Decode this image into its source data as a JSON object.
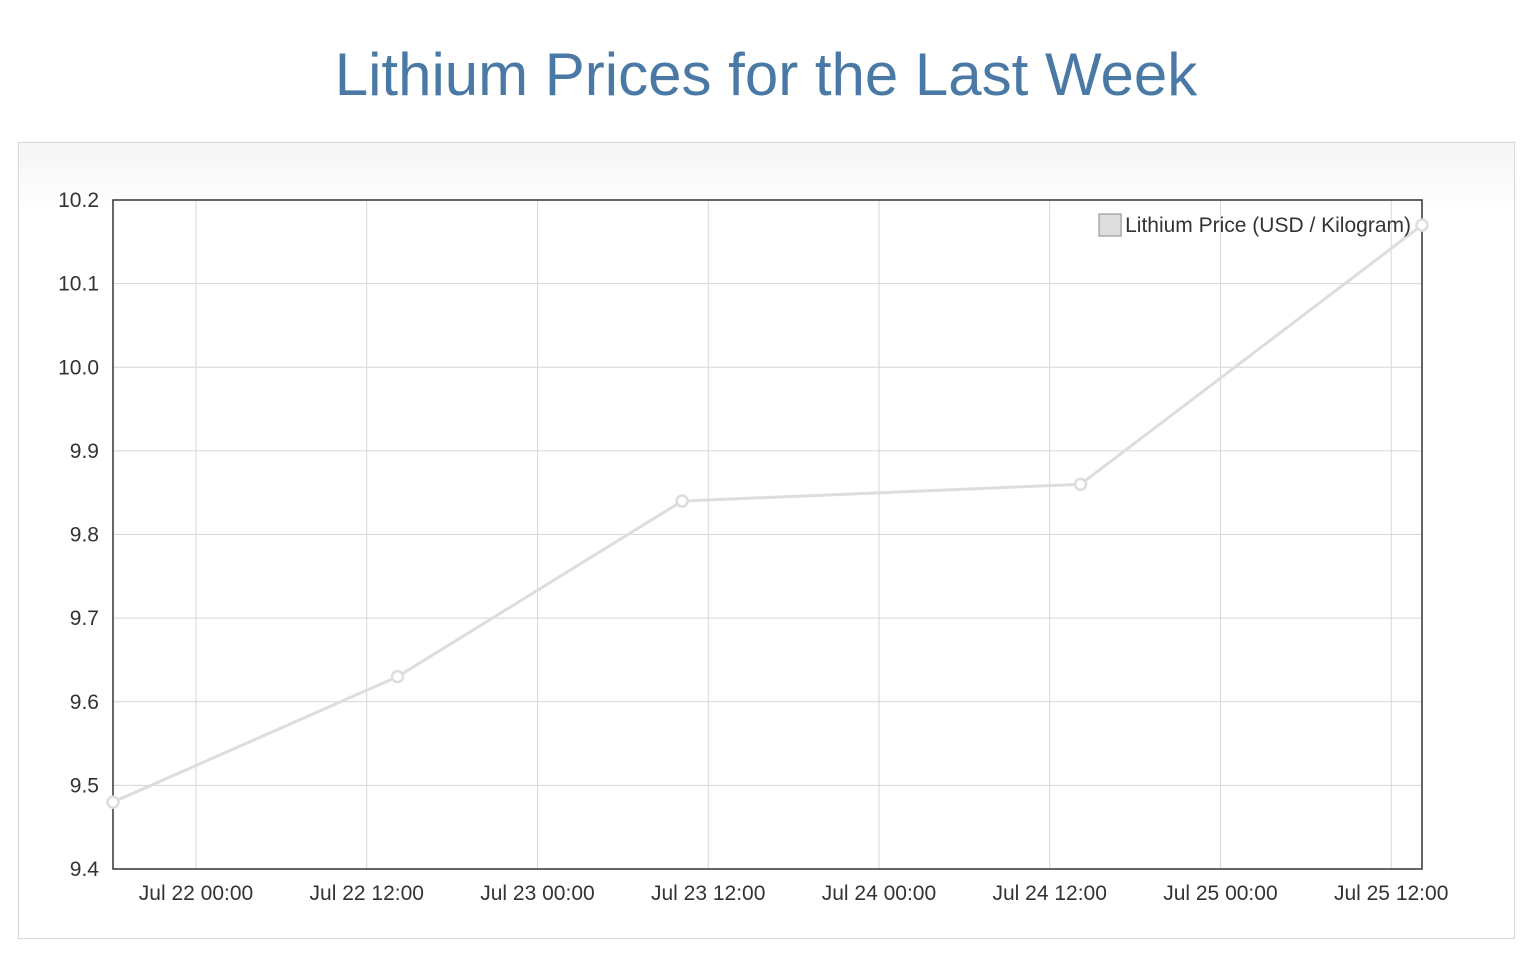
{
  "page": {
    "title": "Lithium Prices for the Last Week"
  },
  "chart_data": {
    "type": "line",
    "title": "Lithium Prices for the Last Week",
    "xlabel": "",
    "ylabel": "",
    "x_tick_labels": [
      "Jul 22 00:00",
      "Jul 22 12:00",
      "Jul 23 00:00",
      "Jul 23 12:00",
      "Jul 24 00:00",
      "Jul 24 12:00",
      "Jul 25 00:00",
      "Jul 25 12:00"
    ],
    "y_tick_labels": [
      "9.4",
      "9.5",
      "9.6",
      "9.7",
      "9.8",
      "9.9",
      "10.0",
      "10.1",
      "10.2"
    ],
    "ylim": [
      9.4,
      10.2
    ],
    "xlim": [
      "Jul 21 18:10",
      "Jul 25 14:10"
    ],
    "grid": true,
    "legend_position": "top-right",
    "series": [
      {
        "name": "Lithium Price (USD / Kilogram)",
        "color": "#dddddd",
        "points": [
          {
            "x": "Jul 21 18:10",
            "y": 9.48
          },
          {
            "x": "Jul 22 14:10",
            "y": 9.63
          },
          {
            "x": "Jul 23 10:10",
            "y": 9.84
          },
          {
            "x": "Jul 24 14:10",
            "y": 9.86
          },
          {
            "x": "Jul 25 14:10",
            "y": 10.17
          }
        ]
      }
    ]
  }
}
